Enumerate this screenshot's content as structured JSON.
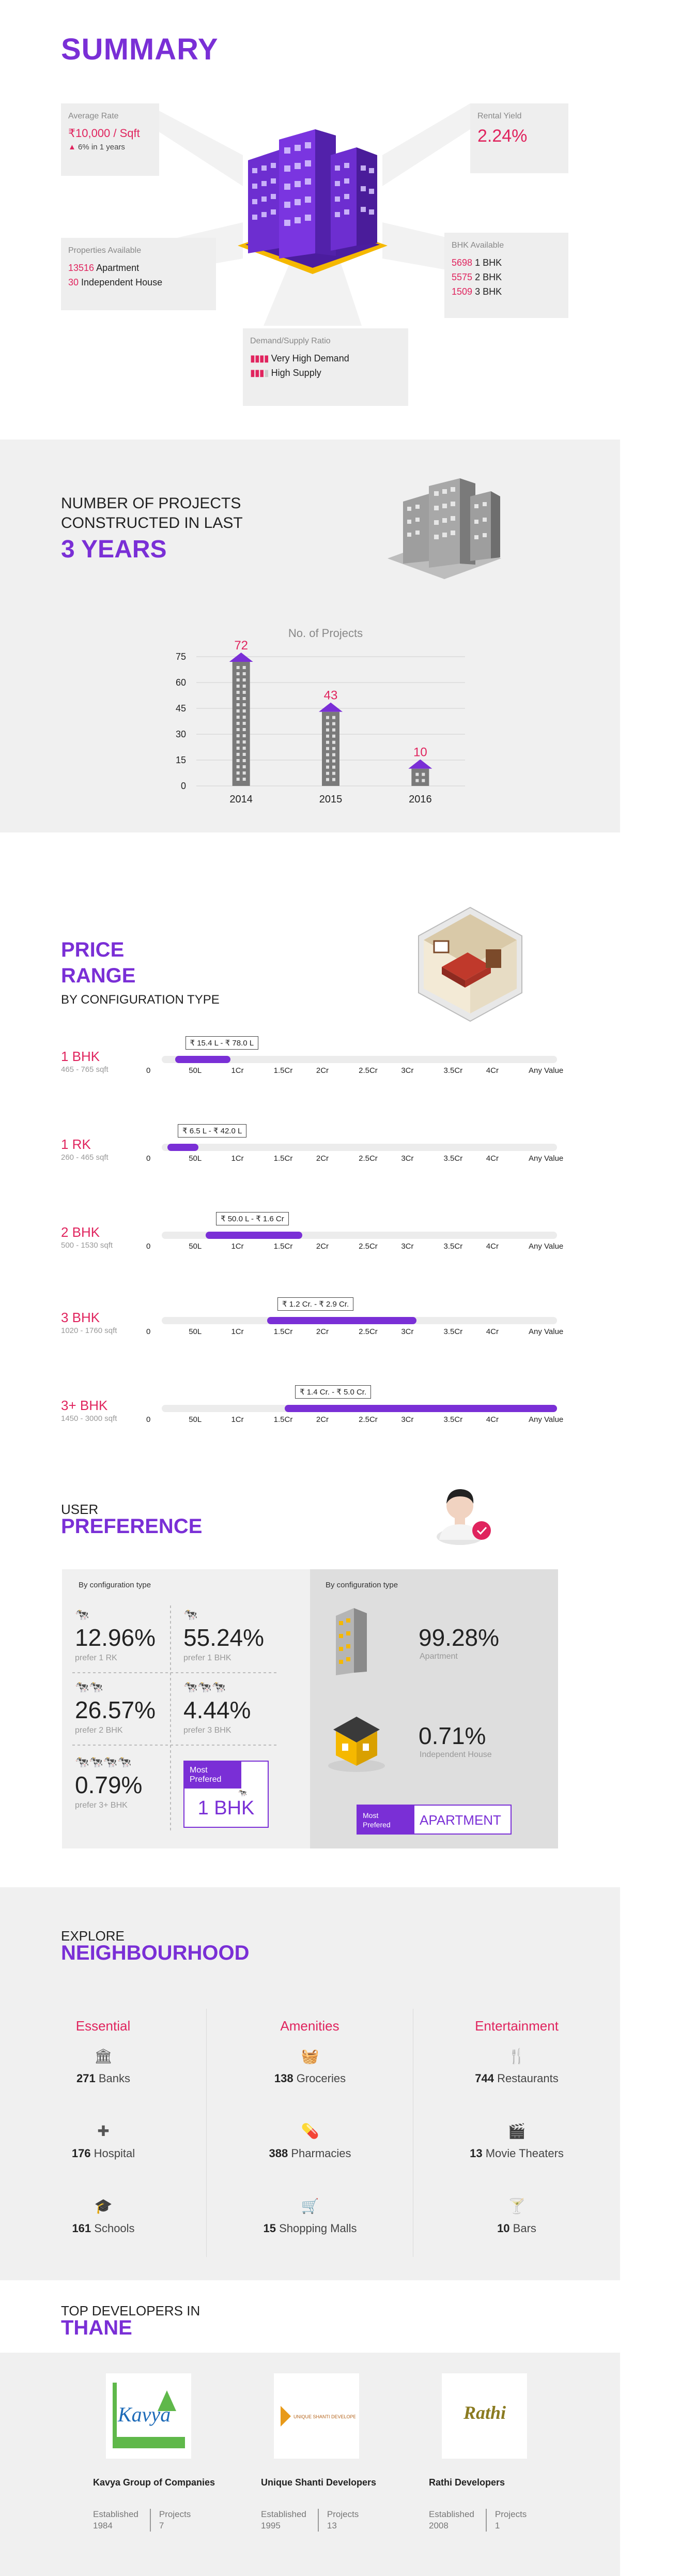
{
  "summary": {
    "title": "SUMMARY",
    "avg_rate": {
      "label": "Average Rate",
      "value": "₹10,000 / Sqft",
      "change": "6% in 1 years"
    },
    "rental_yield": {
      "label": "Rental Yield",
      "value": "2.24%"
    },
    "properties": {
      "label": "Properties Available",
      "apartment_count": "13516",
      "apartment_label": "Apartment",
      "house_count": "30",
      "house_label": "Independent House"
    },
    "bhk": {
      "label": "BHK Available",
      "rows": [
        {
          "count": "5698",
          "label": "1 BHK"
        },
        {
          "count": "5575",
          "label": "2 BHK"
        },
        {
          "count": "1509",
          "label": "3 BHK"
        }
      ]
    },
    "demand": {
      "label": "Demand/Supply Ratio",
      "high_demand": "Very High Demand",
      "high_supply": "High Supply"
    }
  },
  "projects": {
    "line1": "NUMBER OF PROJECTS",
    "line2": "CONSTRUCTED IN LAST",
    "highlight": "3 YEARS",
    "chart_data": {
      "type": "bar",
      "title": "No. of Projects",
      "categories": [
        "2014",
        "2015",
        "2016"
      ],
      "values": [
        72,
        43,
        10
      ],
      "yticks": [
        "0",
        "15",
        "30",
        "45",
        "60",
        "75"
      ],
      "ylim": [
        0,
        75
      ],
      "grid": true,
      "colors": {
        "bar": "#7a7a7a",
        "roof": "#7a2fd6",
        "label": "#e0245e"
      }
    }
  },
  "price": {
    "title1": "PRICE",
    "title2": "RANGE",
    "subtitle": "BY CONFIGURATION TYPE",
    "ticks": [
      "0",
      "50L",
      "1Cr",
      "1.5Cr",
      "2Cr",
      "2.5Cr",
      "3Cr",
      "3.5Cr",
      "4Cr",
      "Any Value"
    ],
    "rows": [
      {
        "name": "1 BHK",
        "size": "465 - 765 sqft",
        "range": "₹ 15.4 L - ₹ 78.0 L",
        "from": 0.15,
        "to": 0.78
      },
      {
        "name": "1 RK",
        "size": "260 - 465 sqft",
        "range": "₹ 6.5 L - ₹ 42.0 L",
        "from": 0.065,
        "to": 0.42
      },
      {
        "name": "2 BHK",
        "size": "500 - 1530 sqft",
        "range": "₹ 50.0 L - ₹ 1.6 Cr",
        "from": 0.5,
        "to": 1.6
      },
      {
        "name": "3 BHK",
        "size": "1020 - 1760 sqft",
        "range": "₹ 1.2 Cr. - ₹ 2.9 Cr.",
        "from": 1.2,
        "to": 2.9
      },
      {
        "name": "3+ BHK",
        "size": "1450 - 3000 sqft",
        "range": "₹ 1.4 Cr. - ₹ 5.0 Cr.",
        "from": 1.4,
        "to": 5.0
      }
    ]
  },
  "preference": {
    "title1": "USER",
    "title2": "PREFERENCE",
    "left_header": "By configuration type",
    "right_header": "By configuration type",
    "cells": [
      {
        "pct": "12.96%",
        "sub": "prefer 1 RK",
        "cows": "🐄"
      },
      {
        "pct": "55.24%",
        "sub": "prefer 1 BHK",
        "cows": "🐄"
      },
      {
        "pct": "26.57%",
        "sub": "prefer 2 BHK",
        "cows": "🐄🐄"
      },
      {
        "pct": "4.44%",
        "sub": "prefer 3 BHK",
        "cows": "🐄🐄🐄"
      },
      {
        "pct": "0.79%",
        "sub": "prefer 3+ BHK",
        "cows": "🐄🐄🐄🐄"
      }
    ],
    "most_preferred_label": "Most Prefered",
    "most_preferred_value": "1 BHK",
    "apartment_pct": "99.28%",
    "apartment_label": "Apartment",
    "house_pct": "0.71%",
    "house_label": "Independent House",
    "most_pref_type_label1": "Most",
    "most_pref_type_label2": "Prefered",
    "most_pref_type_value": "APARTMENT"
  },
  "neighbourhood": {
    "title1": "EXPLORE",
    "title2": "NEIGHBOURHOOD",
    "columns": [
      {
        "heading": "Essential",
        "items": [
          {
            "icon": "bank-icon",
            "glyph": "🏛",
            "count": "271",
            "label": "Banks"
          },
          {
            "icon": "hospital-icon",
            "glyph": "✚",
            "count": "176",
            "label": "Hospital"
          },
          {
            "icon": "school-icon",
            "glyph": "🎓",
            "count": "161",
            "label": "Schools"
          }
        ]
      },
      {
        "heading": "Amenities",
        "items": [
          {
            "icon": "grocery-icon",
            "glyph": "🧺",
            "count": "138",
            "label": "Groceries"
          },
          {
            "icon": "pharmacy-icon",
            "glyph": "💊",
            "count": "388",
            "label": "Pharmacies"
          },
          {
            "icon": "cart-icon",
            "glyph": "🛒",
            "count": "15",
            "label": "Shopping Malls"
          }
        ]
      },
      {
        "heading": "Entertainment",
        "items": [
          {
            "icon": "restaurant-icon",
            "glyph": "🍴",
            "count": "744",
            "label": "Restaurants"
          },
          {
            "icon": "theater-icon",
            "glyph": "🎬",
            "count": "13",
            "label": "Movie Theaters"
          },
          {
            "icon": "bar-icon",
            "glyph": "🍸",
            "count": "10",
            "label": "Bars"
          }
        ]
      }
    ]
  },
  "developers": {
    "title1": "TOP DEVELOPERS IN",
    "title2": "THANE",
    "list": [
      {
        "name": "Kavya Group of Companies",
        "logo_text": "Kavya",
        "est_label": "Established",
        "est": "1984",
        "proj_label": "Projects",
        "proj": "7"
      },
      {
        "name": "Unique Shanti Developers",
        "logo_text": "UNIQUE SHANTI DEVELOPERS",
        "est_label": "Established",
        "est": "1995",
        "proj_label": "Projects",
        "proj": "13"
      },
      {
        "name": "Rathi Developers",
        "logo_text": "Rathi",
        "est_label": "Established",
        "est": "2008",
        "proj_label": "Projects",
        "proj": "1"
      }
    ]
  }
}
